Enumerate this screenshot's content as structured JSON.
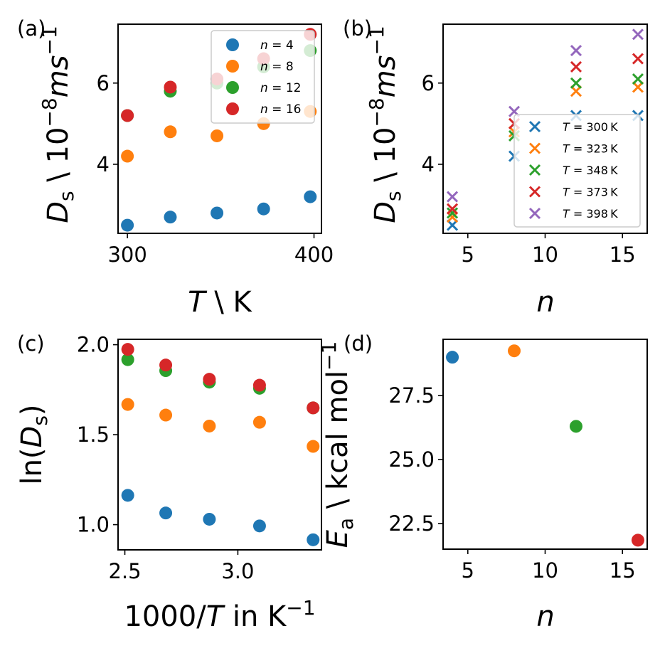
{
  "chart_data": [
    {
      "id": "a",
      "panel_label": "(a)",
      "type": "scatter",
      "marker": "circle",
      "xlabel": "T \\ K",
      "xlabel_parts": {
        "var": "T",
        "rest": " \\ K"
      },
      "ylabel_parts": {
        "var": "D",
        "sub": "s",
        "mid": " \\ 10",
        "exp": "−8",
        "unit": "ms",
        "unit_exp": "−1"
      },
      "xlim": [
        295,
        404
      ],
      "ylim": [
        2.3,
        7.45
      ],
      "xticks": [
        300,
        400
      ],
      "xtick_labels": [
        "300",
        "400"
      ],
      "yticks": [
        4,
        6
      ],
      "ytick_labels": [
        "4",
        "6"
      ],
      "legend_position": "upper-right",
      "x": [
        300,
        323,
        348,
        373,
        398
      ],
      "series": [
        {
          "name": "n = 4",
          "label_var": "n",
          "label_val": "4",
          "color": "#1f77b4",
          "values": [
            2.5,
            2.7,
            2.8,
            2.9,
            3.2
          ]
        },
        {
          "name": "n = 8",
          "label_var": "n",
          "label_val": "8",
          "color": "#ff7f0e",
          "values": [
            4.2,
            4.8,
            4.7,
            5.0,
            5.3
          ]
        },
        {
          "name": "n = 12",
          "label_var": "n",
          "label_val": "12",
          "color": "#2ca02c",
          "values": [
            5.2,
            5.8,
            6.0,
            6.4,
            6.8
          ]
        },
        {
          "name": "n = 16",
          "label_var": "n",
          "label_val": "16",
          "color": "#d62728",
          "values": [
            5.2,
            5.9,
            6.1,
            6.6,
            7.2
          ]
        }
      ]
    },
    {
      "id": "b",
      "panel_label": "(b)",
      "type": "scatter",
      "marker": "x",
      "xlabel": "n",
      "ylabel_parts": {
        "var": "D",
        "sub": "s",
        "mid": " \\ 10",
        "exp": "−8",
        "unit": "ms",
        "unit_exp": "−1"
      },
      "xlim": [
        3.4,
        16.6
      ],
      "ylim": [
        2.3,
        7.45
      ],
      "xticks": [
        5,
        10,
        15
      ],
      "xtick_labels": [
        "5",
        "10",
        "15"
      ],
      "yticks": [
        4,
        6
      ],
      "ytick_labels": [
        "4",
        "6"
      ],
      "legend_position": "lower-right",
      "x": [
        4,
        8,
        12,
        16
      ],
      "series": [
        {
          "name": "T = 300 K",
          "label_var": "T",
          "label_val": "300",
          "label_unit": "K",
          "color": "#1f77b4",
          "values": [
            2.5,
            4.2,
            5.2,
            5.2
          ]
        },
        {
          "name": "T = 323 K",
          "label_var": "T",
          "label_val": "323",
          "label_unit": "K",
          "color": "#ff7f0e",
          "values": [
            2.7,
            4.8,
            5.8,
            5.9
          ]
        },
        {
          "name": "T = 348 K",
          "label_var": "T",
          "label_val": "348",
          "label_unit": "K",
          "color": "#2ca02c",
          "values": [
            2.8,
            4.7,
            6.0,
            6.1
          ]
        },
        {
          "name": "T = 373 K",
          "label_var": "T",
          "label_val": "373",
          "label_unit": "K",
          "color": "#d62728",
          "values": [
            2.9,
            5.0,
            6.4,
            6.6
          ]
        },
        {
          "name": "T = 398 K",
          "label_var": "T",
          "label_val": "398",
          "label_unit": "K",
          "color": "#9467bd",
          "values": [
            3.2,
            5.3,
            6.8,
            7.2
          ]
        }
      ]
    },
    {
      "id": "c",
      "panel_label": "(c)",
      "type": "scatter",
      "marker": "circle",
      "xlabel_parts": {
        "num": "1000/",
        "var": "T",
        "rest": " in K",
        "exp": "−1"
      },
      "ylabel_parts": {
        "pre": "ln(",
        "var": "D",
        "sub": "s",
        "post": ")"
      },
      "xlim": [
        2.47,
        3.37
      ],
      "ylim": [
        0.86,
        2.03
      ],
      "xticks": [
        2.5,
        3.0
      ],
      "xtick_labels": [
        "2.5",
        "3.0"
      ],
      "yticks": [
        1.0,
        1.5,
        2.0
      ],
      "ytick_labels": [
        "1.0",
        "1.5",
        "2.0"
      ],
      "x": [
        2.513,
        2.681,
        2.874,
        3.096,
        3.333
      ],
      "series": [
        {
          "name": "n = 4",
          "color": "#1f77b4",
          "values": [
            1.163,
            1.065,
            1.03,
            0.993,
            0.916
          ]
        },
        {
          "name": "n = 8",
          "color": "#ff7f0e",
          "values": [
            1.668,
            1.609,
            1.548,
            1.569,
            1.435
          ]
        },
        {
          "name": "n = 12",
          "color": "#2ca02c",
          "values": [
            1.917,
            1.856,
            1.792,
            1.758,
            1.649
          ]
        },
        {
          "name": "n = 16",
          "color": "#d62728",
          "values": [
            1.974,
            1.887,
            1.808,
            1.775,
            1.649
          ]
        }
      ]
    },
    {
      "id": "d",
      "panel_label": "(d)",
      "type": "scatter",
      "marker": "circle",
      "xlabel": "n",
      "ylabel_parts": {
        "var": "E",
        "sub": "a",
        "rest": " \\ kcal mol",
        "exp": "−1"
      },
      "xlim": [
        3.4,
        16.6
      ],
      "ylim": [
        21.5,
        29.7
      ],
      "xticks": [
        5,
        10,
        15
      ],
      "xtick_labels": [
        "5",
        "10",
        "15"
      ],
      "yticks": [
        22.5,
        25.0,
        27.5
      ],
      "ytick_labels": [
        "22.5",
        "25.0",
        "27.5"
      ],
      "points": [
        {
          "x": 4,
          "y": 29.0,
          "color": "#1f77b4"
        },
        {
          "x": 8,
          "y": 29.25,
          "color": "#ff7f0e"
        },
        {
          "x": 12,
          "y": 26.3,
          "color": "#2ca02c"
        },
        {
          "x": 16,
          "y": 21.85,
          "color": "#d62728"
        }
      ]
    }
  ]
}
